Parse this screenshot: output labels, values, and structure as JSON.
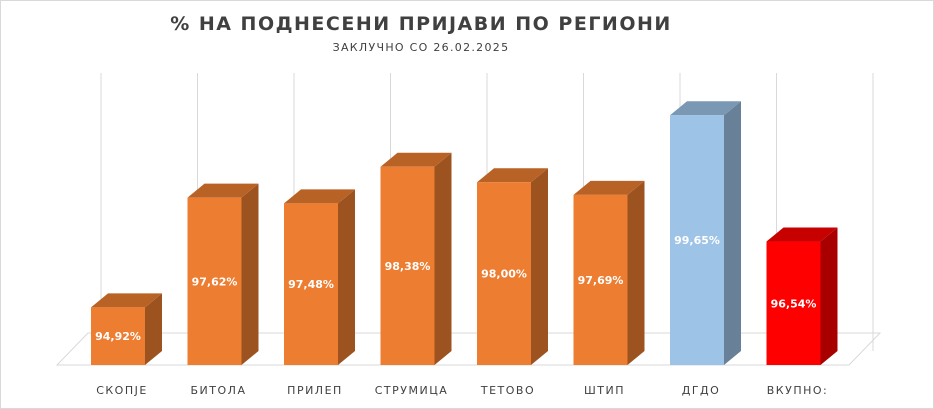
{
  "chart_data": {
    "type": "bar",
    "title": "% НА ПОДНЕСЕНИ ПРИЈАВИ ПО РЕГИОНИ",
    "subtitle": "ЗАКЛУЧНО СО 26.02.2025",
    "categories": [
      "СКОПЈЕ",
      "БИТОЛА",
      "ПРИЛЕП",
      "СТРУМИЦА",
      "ТЕТОВО",
      "ШТИП",
      "ДГДО",
      "ВКУПНО:"
    ],
    "values": [
      94.92,
      97.62,
      97.48,
      98.38,
      98.0,
      97.69,
      99.65,
      96.54
    ],
    "data_labels": [
      "94,92%",
      "97,62%",
      "97,48%",
      "98,38%",
      "98,00%",
      "97,69%",
      "99,65%",
      "96,54%"
    ],
    "colors": [
      "#ED7D31",
      "#ED7D31",
      "#ED7D31",
      "#ED7D31",
      "#ED7D31",
      "#ED7D31",
      "#9DC3E6",
      "#FF0000"
    ],
    "style": "3d-column",
    "grid": "vertical",
    "legend": "none"
  }
}
